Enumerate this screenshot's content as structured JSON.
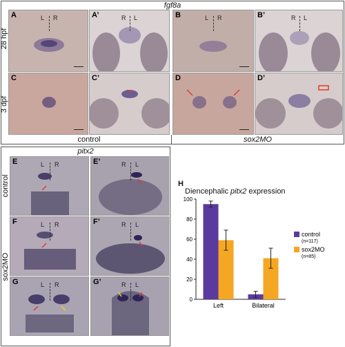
{
  "top_section": {
    "gene": "fgf8a",
    "row_labels": [
      "28 hpf",
      "3 dpf"
    ],
    "col_labels": [
      "control",
      "sox2MO"
    ],
    "panels": [
      {
        "letter": "A",
        "lr": [
          "L",
          "R"
        ]
      },
      {
        "letter": "A’",
        "lr": [
          "R",
          "L"
        ]
      },
      {
        "letter": "B",
        "lr": [
          "L",
          "R"
        ]
      },
      {
        "letter": "B’",
        "lr": [
          "R",
          "L"
        ]
      },
      {
        "letter": "C",
        "lr": []
      },
      {
        "letter": "C’",
        "lr": []
      },
      {
        "letter": "D",
        "lr": []
      },
      {
        "letter": "D’",
        "lr": []
      }
    ]
  },
  "bottom_section": {
    "gene": "pitx2",
    "row_labels": [
      "control",
      "sox2MO"
    ],
    "panels": [
      {
        "letter": "E",
        "lr": [
          "L",
          "R"
        ]
      },
      {
        "letter": "E’",
        "lr": [
          "R",
          "L"
        ]
      },
      {
        "letter": "F",
        "lr": [
          "L",
          "R"
        ]
      },
      {
        "letter": "F’",
        "lr": [
          "R",
          "L"
        ]
      },
      {
        "letter": "G",
        "lr": [
          "L",
          "R"
        ]
      },
      {
        "letter": "G’",
        "lr": [
          "R",
          "L"
        ]
      }
    ]
  },
  "chart_panel_letter": "H",
  "chart_data": {
    "type": "bar",
    "title": "Diencephalic pitx2 expression",
    "categories": [
      "Left",
      "Bilateral"
    ],
    "series": [
      {
        "name": "control",
        "sub": "(n=117)",
        "color": "#5a3a9e",
        "values": [
          95,
          5
        ],
        "errors": [
          3,
          3
        ]
      },
      {
        "name": "sox2MO",
        "sub": "(n=85)",
        "color": "#f5a623",
        "values": [
          59,
          41
        ],
        "errors": [
          10,
          10
        ]
      }
    ],
    "ylim": [
      0,
      100
    ],
    "yticks": [
      0,
      20,
      40,
      60,
      80,
      100
    ],
    "grid": false,
    "legend": "right"
  },
  "colors": {
    "panel_bg_light": "#c9b5b2",
    "panel_bg_grey": "#a9a3ad",
    "stain": "#4a3a78",
    "arrow_red": "#e33a2a",
    "arrow_yellow": "#f2d21c"
  }
}
